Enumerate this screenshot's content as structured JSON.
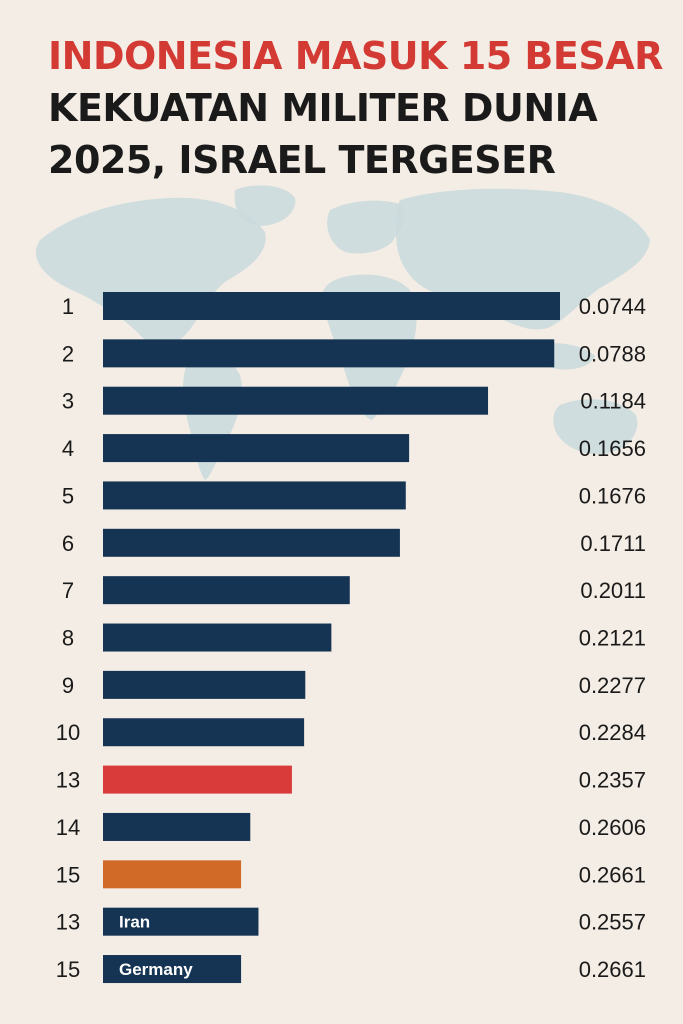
{
  "title_line1": "INDONESIA MASUK 15 BESAR",
  "title_line2": "KEKUATAN MILITER DUNIA",
  "title_line3": "2025, ISRAEL TERGESER",
  "colors": {
    "title_accent": "#d43a34",
    "bar_default": "#153352",
    "bar_highlight_red": "#d93a3a",
    "bar_highlight_orange": "#d06a26",
    "background": "#f4ede5",
    "map": "#c9d9dd"
  },
  "chart_data": {
    "type": "bar",
    "orientation": "horizontal",
    "title": "INDONESIA MASUK 15 BESAR KEKUATAN MILITER DUNIA 2025, ISRAEL TERGESER",
    "rows": [
      {
        "rank": "1",
        "value": 0.0744,
        "value_label": "0.0744",
        "color": "#153352",
        "bar_label": ""
      },
      {
        "rank": "2",
        "value": 0.0788,
        "value_label": "0.0788",
        "color": "#153352",
        "bar_label": ""
      },
      {
        "rank": "3",
        "value": 0.1184,
        "value_label": "0.1184",
        "color": "#153352",
        "bar_label": ""
      },
      {
        "rank": "4",
        "value": 0.1656,
        "value_label": "0.1656",
        "color": "#153352",
        "bar_label": ""
      },
      {
        "rank": "5",
        "value": 0.1676,
        "value_label": "0.1676",
        "color": "#153352",
        "bar_label": ""
      },
      {
        "rank": "6",
        "value": 0.1711,
        "value_label": "0.1711",
        "color": "#153352",
        "bar_label": ""
      },
      {
        "rank": "7",
        "value": 0.2011,
        "value_label": "0.2011",
        "color": "#153352",
        "bar_label": ""
      },
      {
        "rank": "8",
        "value": 0.2121,
        "value_label": "0.2121",
        "color": "#153352",
        "bar_label": ""
      },
      {
        "rank": "9",
        "value": 0.2277,
        "value_label": "0.2277",
        "color": "#153352",
        "bar_label": ""
      },
      {
        "rank": "10",
        "value": 0.2284,
        "value_label": "0.2284",
        "color": "#153352",
        "bar_label": ""
      },
      {
        "rank": "13",
        "value": 0.2357,
        "value_label": "0.2357",
        "color": "#d93a3a",
        "bar_label": ""
      },
      {
        "rank": "14",
        "value": 0.2606,
        "value_label": "0.2606",
        "color": "#153352",
        "bar_label": ""
      },
      {
        "rank": "15",
        "value": 0.2661,
        "value_label": "0.2661",
        "color": "#d06a26",
        "bar_label": ""
      },
      {
        "rank": "13",
        "value": 0.2557,
        "value_label": "0.2557",
        "color": "#153352",
        "bar_label": "Iran"
      },
      {
        "rank": "15",
        "value": 0.2661,
        "value_label": "0.2661",
        "color": "#153352",
        "bar_label": "Germany"
      }
    ]
  }
}
